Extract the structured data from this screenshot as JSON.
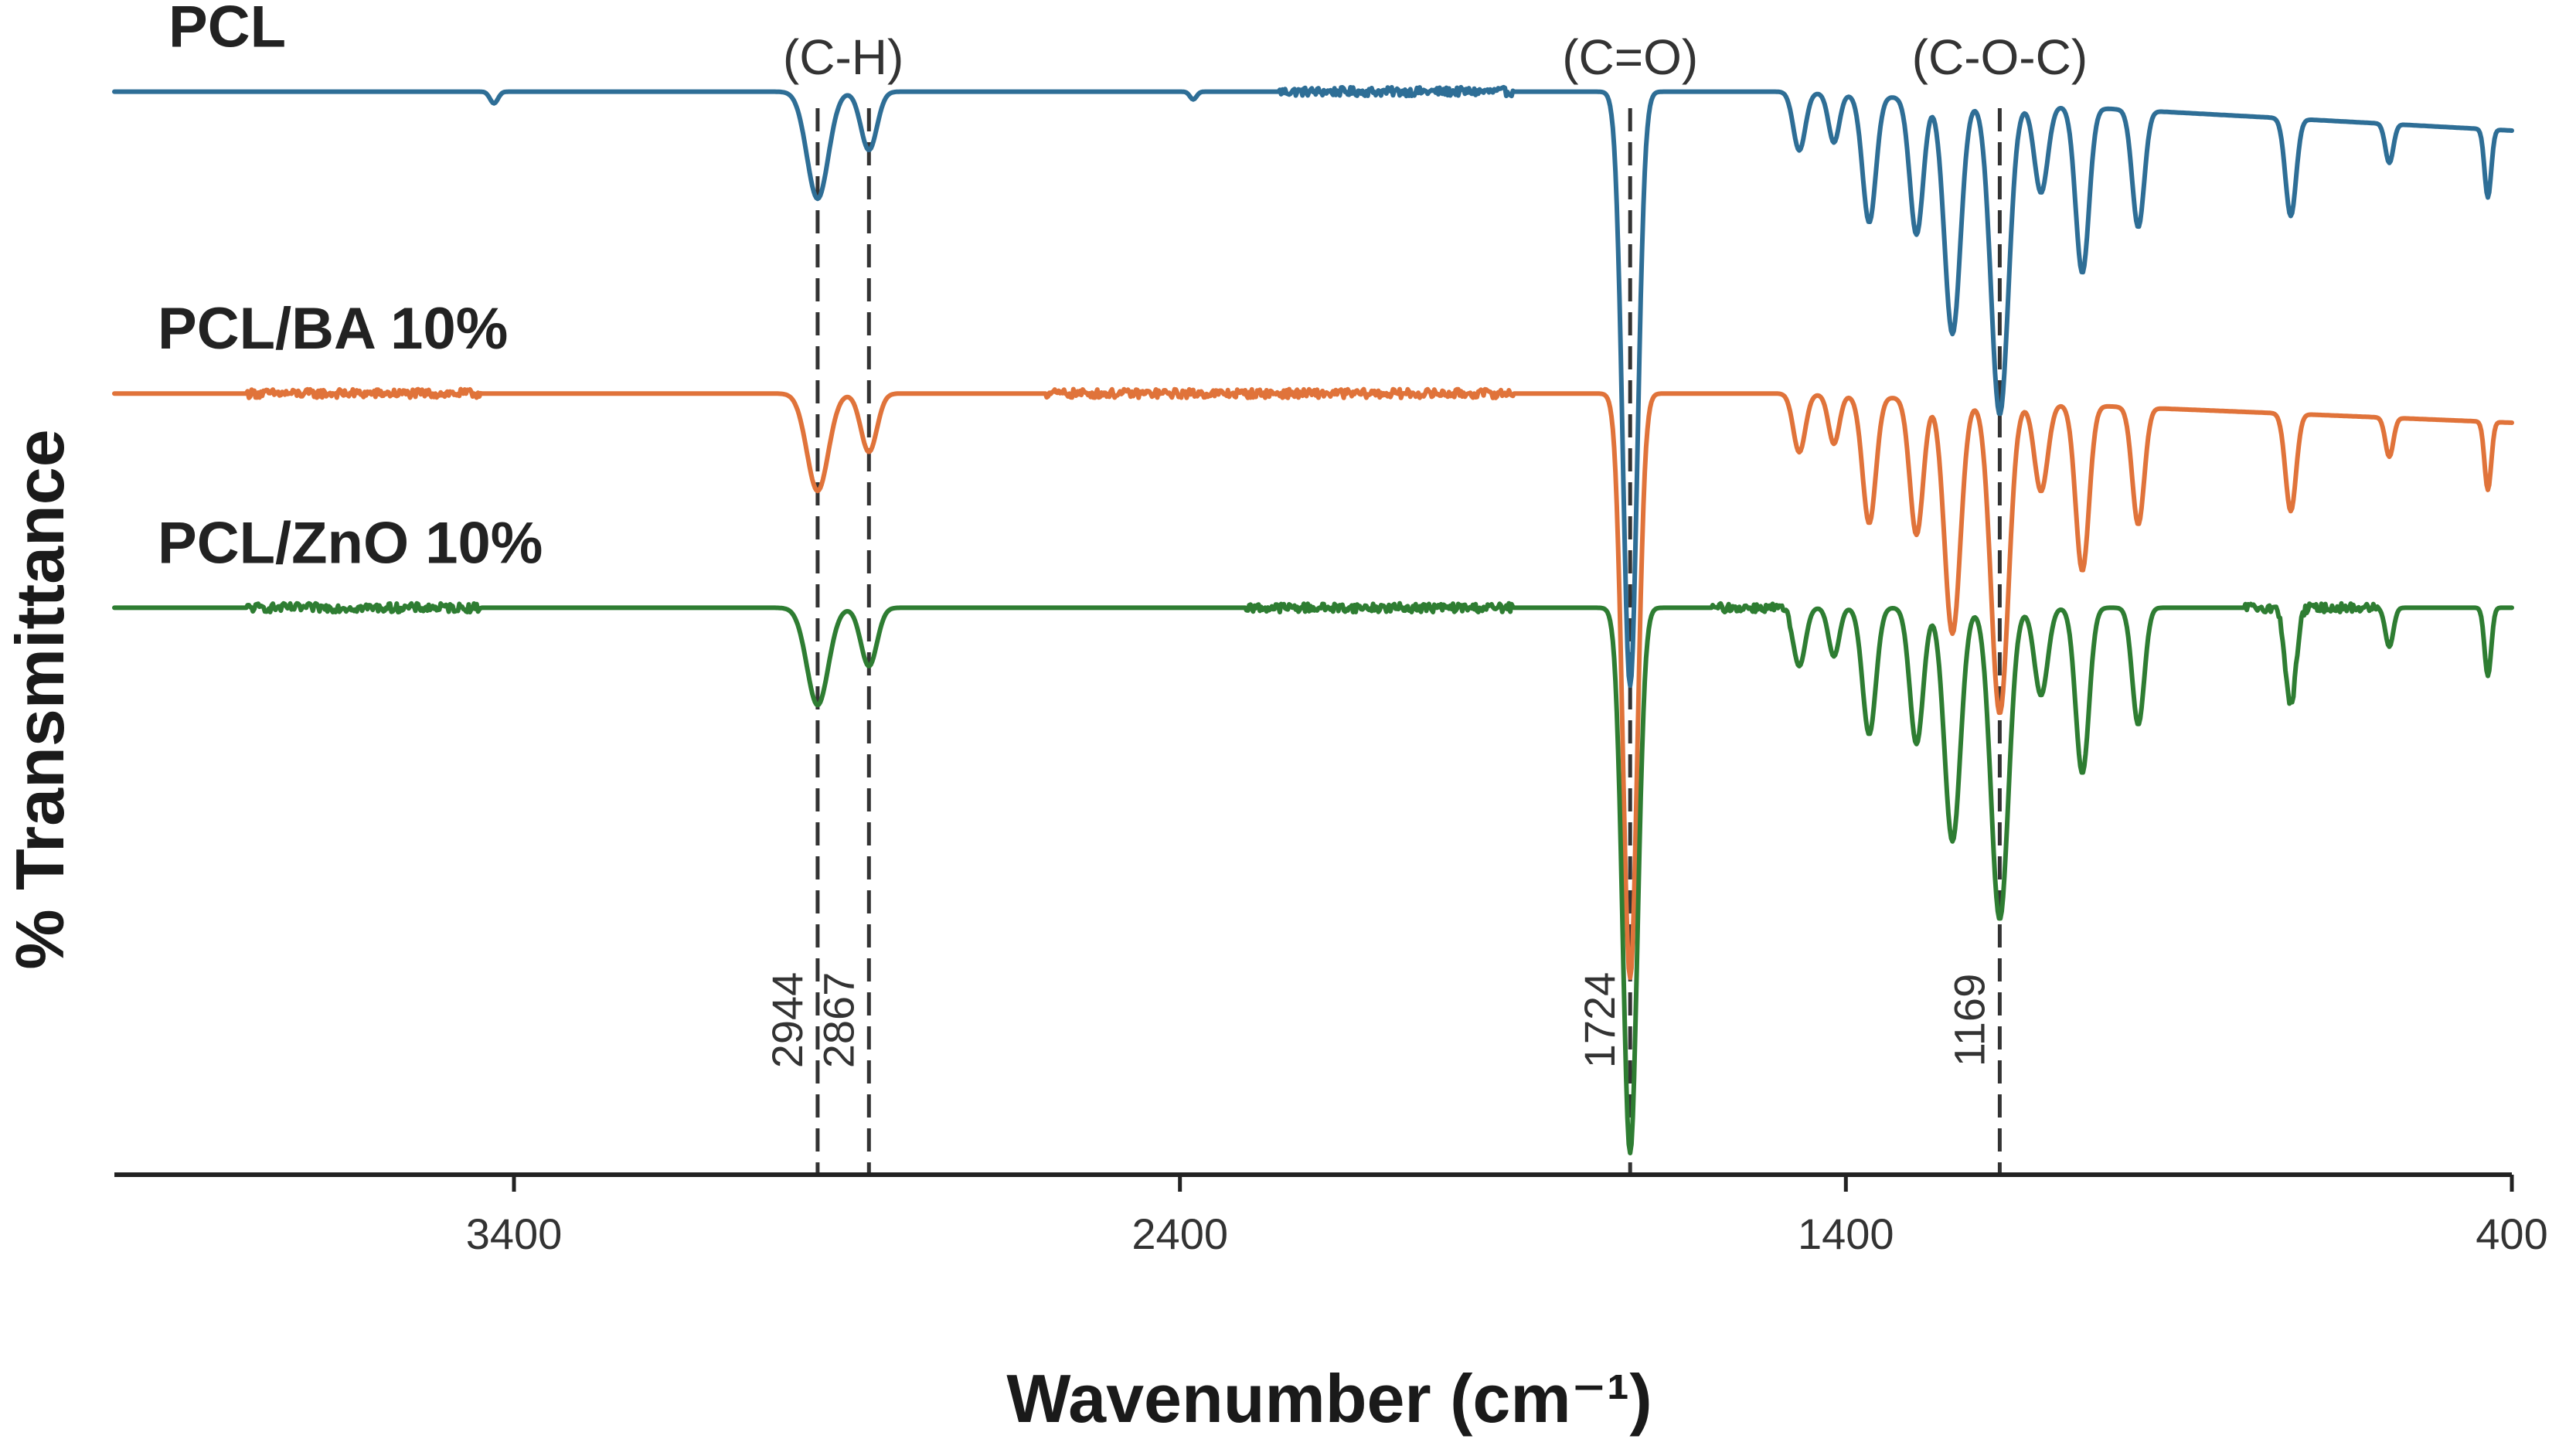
{
  "chart_data": {
    "type": "line",
    "title": "",
    "xlabel": "Wavenumber (cm⁻¹)",
    "ylabel": "% Transmittance",
    "xlim": [
      4000,
      400
    ],
    "x_reversed": true,
    "x_ticks": [
      3400,
      2400,
      1400,
      400
    ],
    "y_ticks_shown": false,
    "grid": false,
    "peak_markers": [
      {
        "wavenumber": 2944,
        "label": "2944"
      },
      {
        "wavenumber": 2867,
        "label": "2867"
      },
      {
        "wavenumber": 1724,
        "label": "1724"
      },
      {
        "wavenumber": 1169,
        "label": "1169"
      }
    ],
    "band_groups": [
      {
        "label": "(C-H)",
        "wavenumbers": [
          2944,
          2867
        ]
      },
      {
        "label": "(C=O)",
        "wavenumbers": [
          1724
        ]
      },
      {
        "label": "(C-O-C)",
        "wavenumbers": [
          1169
        ]
      }
    ],
    "series": [
      {
        "name": "PCL",
        "color": "#2E6E96",
        "baseline": 89,
        "tail_baseline": 85,
        "noise_regions": [
          [
            2250,
            1900
          ]
        ],
        "peaks": [
          {
            "x": 3430,
            "depth": 1.2,
            "width": 6
          },
          {
            "x": 2944,
            "depth": 11,
            "width": 16
          },
          {
            "x": 2867,
            "depth": 6,
            "width": 12
          },
          {
            "x": 2380,
            "depth": 0.8,
            "width": 5
          },
          {
            "x": 1724,
            "depth": 61,
            "width": 11
          },
          {
            "x": 1470,
            "depth": 6,
            "width": 9
          },
          {
            "x": 1418,
            "depth": 5,
            "width": 8
          },
          {
            "x": 1365,
            "depth": 13,
            "width": 10
          },
          {
            "x": 1294,
            "depth": 14,
            "width": 10
          },
          {
            "x": 1240,
            "depth": 24,
            "width": 12
          },
          {
            "x": 1169,
            "depth": 32,
            "width": 13
          },
          {
            "x": 1107,
            "depth": 9,
            "width": 10
          },
          {
            "x": 1045,
            "depth": 17,
            "width": 10
          },
          {
            "x": 961,
            "depth": 12,
            "width": 9
          },
          {
            "x": 732,
            "depth": 10,
            "width": 8
          },
          {
            "x": 584,
            "depth": 4,
            "width": 6
          },
          {
            "x": 436,
            "depth": 7,
            "width": 5
          }
        ]
      },
      {
        "name": "PCL/BA 10%",
        "color": "#E0733A",
        "baseline": 58,
        "tail_baseline": 55,
        "noise_regions": [
          [
            3800,
            3450
          ],
          [
            2600,
            1900
          ]
        ],
        "peaks": [
          {
            "x": 2944,
            "depth": 10,
            "width": 16
          },
          {
            "x": 2867,
            "depth": 6,
            "width": 12
          },
          {
            "x": 1724,
            "depth": 60,
            "width": 11
          },
          {
            "x": 1470,
            "depth": 6,
            "width": 9
          },
          {
            "x": 1418,
            "depth": 5,
            "width": 8
          },
          {
            "x": 1365,
            "depth": 13,
            "width": 10
          },
          {
            "x": 1294,
            "depth": 14,
            "width": 10
          },
          {
            "x": 1240,
            "depth": 24,
            "width": 12
          },
          {
            "x": 1169,
            "depth": 32,
            "width": 13
          },
          {
            "x": 1107,
            "depth": 9,
            "width": 10
          },
          {
            "x": 1045,
            "depth": 17,
            "width": 10
          },
          {
            "x": 961,
            "depth": 12,
            "width": 9
          },
          {
            "x": 732,
            "depth": 10,
            "width": 8
          },
          {
            "x": 584,
            "depth": 4,
            "width": 6
          },
          {
            "x": 436,
            "depth": 7,
            "width": 5
          }
        ]
      },
      {
        "name": "PCL/ZnO 10%",
        "color": "#2E7D32",
        "baseline": 36,
        "tail_baseline": 36,
        "noise_regions": [
          [
            3800,
            3450
          ],
          [
            2300,
            1900
          ],
          [
            1600,
            1480
          ],
          [
            800,
            600
          ]
        ],
        "peaks": [
          {
            "x": 2944,
            "depth": 10,
            "width": 16
          },
          {
            "x": 2867,
            "depth": 6,
            "width": 12
          },
          {
            "x": 1724,
            "depth": 56,
            "width": 11
          },
          {
            "x": 1470,
            "depth": 6,
            "width": 9
          },
          {
            "x": 1418,
            "depth": 5,
            "width": 8
          },
          {
            "x": 1365,
            "depth": 13,
            "width": 10
          },
          {
            "x": 1294,
            "depth": 14,
            "width": 10
          },
          {
            "x": 1240,
            "depth": 24,
            "width": 12
          },
          {
            "x": 1169,
            "depth": 32,
            "width": 13
          },
          {
            "x": 1107,
            "depth": 9,
            "width": 10
          },
          {
            "x": 1045,
            "depth": 17,
            "width": 10
          },
          {
            "x": 961,
            "depth": 12,
            "width": 9
          },
          {
            "x": 732,
            "depth": 10,
            "width": 8
          },
          {
            "x": 584,
            "depth": 4,
            "width": 6
          },
          {
            "x": 436,
            "depth": 7,
            "width": 5
          }
        ]
      }
    ]
  }
}
